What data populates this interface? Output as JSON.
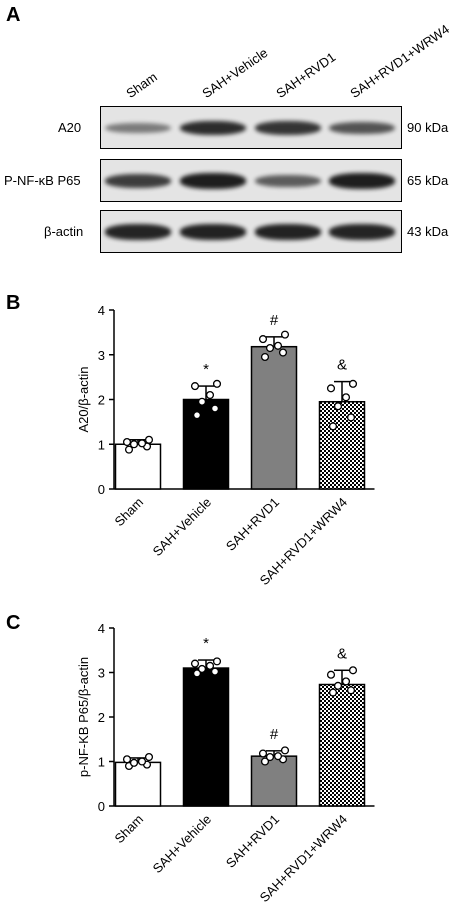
{
  "panels": {
    "a": "A",
    "b": "B",
    "c": "C"
  },
  "western_blot": {
    "lanes": [
      "Sham",
      "SAH+Vehicle",
      "SAH+RVD1",
      "SAH+RVD1+WRW4"
    ],
    "rows": [
      {
        "name": "A20",
        "kda": "90 kDa",
        "intensity": [
          0.35,
          0.85,
          0.8,
          0.6
        ]
      },
      {
        "name": "P-NF-κB P65",
        "kda": "65 kDa",
        "intensity": [
          0.75,
          0.95,
          0.55,
          0.95
        ]
      },
      {
        "name": "β-actin",
        "kda": "43 kDa",
        "intensity": [
          0.9,
          0.92,
          0.92,
          0.9
        ]
      }
    ],
    "band_color": "#161616"
  },
  "chart_data": [
    {
      "type": "bar",
      "panel": "B",
      "categories": [
        "Sham",
        "SAH+Vehicle",
        "SAH+RVD1",
        "SAH+RVD1+WRW4"
      ],
      "values": [
        1.0,
        2.0,
        3.18,
        1.95
      ],
      "errors": [
        0.1,
        0.3,
        0.22,
        0.45
      ],
      "points": [
        [
          0.88,
          0.95,
          1.0,
          1.02,
          1.05,
          1.1
        ],
        [
          1.65,
          1.8,
          1.95,
          2.1,
          2.3,
          2.35
        ],
        [
          2.95,
          3.05,
          3.15,
          3.2,
          3.35,
          3.45
        ],
        [
          1.4,
          1.6,
          1.85,
          2.05,
          2.25,
          2.35
        ]
      ],
      "annotations": [
        "",
        "*",
        "#",
        "&"
      ],
      "fills": [
        "white",
        "black",
        "gray",
        "hatch"
      ],
      "ylabel": "A20/β-actin",
      "ylim": [
        0,
        4
      ],
      "yticks": [
        "0",
        "1",
        "2",
        "3",
        "4"
      ]
    },
    {
      "type": "bar",
      "panel": "C",
      "categories": [
        "Sham",
        "SAH+Vehicle",
        "SAH+RVD1",
        "SAH+RVD1+WRW4"
      ],
      "values": [
        0.98,
        3.1,
        1.12,
        2.73
      ],
      "errors": [
        0.1,
        0.18,
        0.12,
        0.32
      ],
      "points": [
        [
          0.9,
          0.93,
          0.97,
          1.0,
          1.05,
          1.1
        ],
        [
          2.98,
          3.02,
          3.08,
          3.15,
          3.2,
          3.25
        ],
        [
          1.0,
          1.05,
          1.1,
          1.12,
          1.18,
          1.25
        ],
        [
          2.55,
          2.6,
          2.7,
          2.8,
          2.95,
          3.05
        ]
      ],
      "annotations": [
        "",
        "*",
        "#",
        "&"
      ],
      "fills": [
        "white",
        "black",
        "gray",
        "hatch"
      ],
      "ylabel": "p-NF-KB P65/β-actin",
      "ylim": [
        0,
        4
      ],
      "yticks": [
        "0",
        "1",
        "2",
        "3",
        "4"
      ]
    }
  ],
  "colors": {
    "bar_black": "#000000",
    "bar_gray": "#808080",
    "bar_white": "#ffffff",
    "blot_background": "#e4e4e4"
  }
}
